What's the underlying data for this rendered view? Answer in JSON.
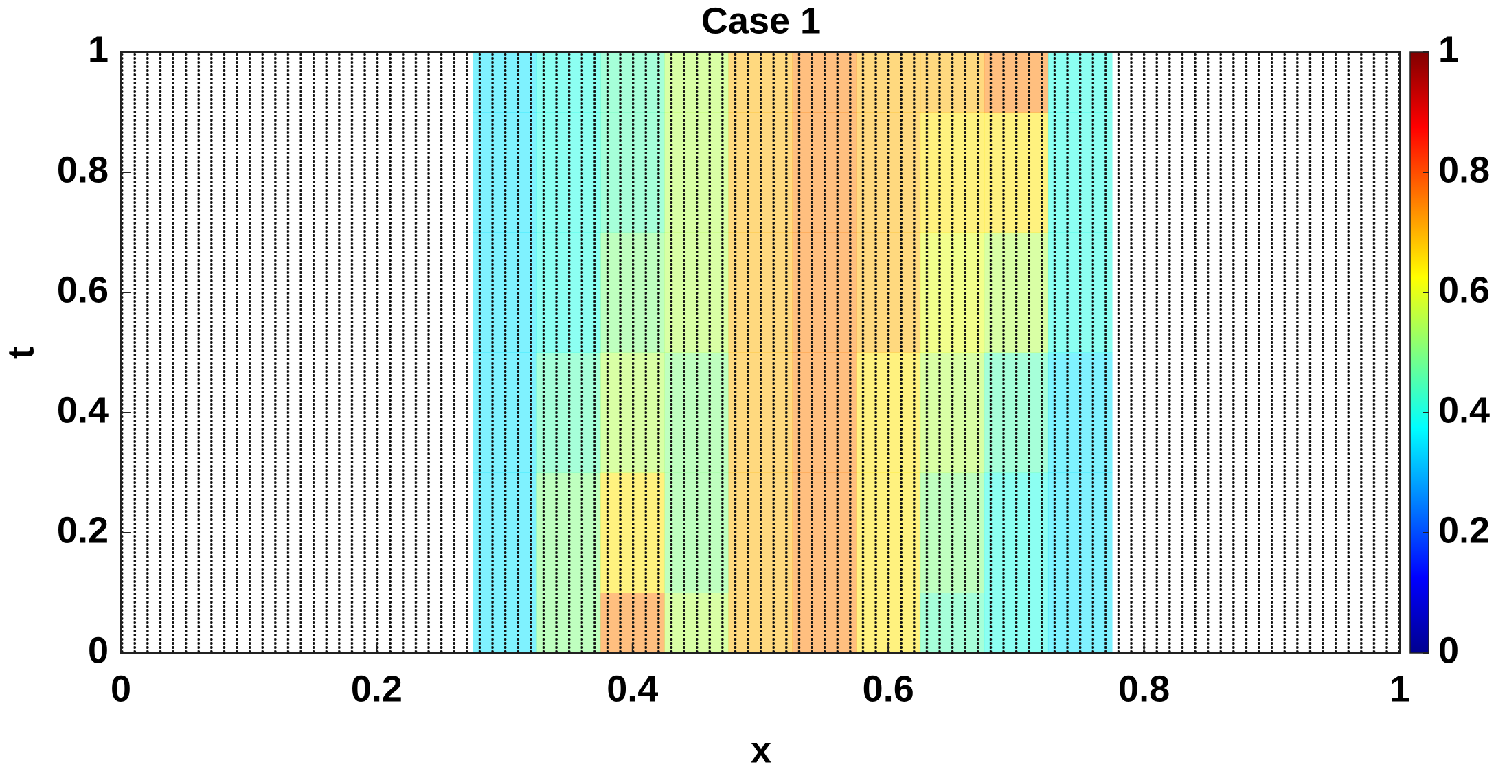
{
  "chart_data": {
    "type": "heatmap",
    "title": "Case 1",
    "xlabel": "x",
    "ylabel": "t",
    "x": [
      0,
      0.05,
      0.1,
      0.15,
      0.2,
      0.25,
      0.3,
      0.35,
      0.4,
      0.45,
      0.5,
      0.55,
      0.6,
      0.65,
      0.7,
      0.75,
      0.8,
      0.85,
      0.9,
      0.95,
      1
    ],
    "y": [
      0,
      0.2,
      0.4,
      0.6,
      0.8,
      1
    ],
    "z": [
      [
        null,
        null,
        null,
        null,
        null,
        null,
        0.35,
        0.5,
        0.75,
        0.55,
        0.7,
        0.75,
        0.65,
        0.45,
        0.4,
        0.35,
        null,
        null,
        null,
        null,
        null
      ],
      [
        null,
        null,
        null,
        null,
        null,
        null,
        0.35,
        0.5,
        0.65,
        0.5,
        0.7,
        0.75,
        0.65,
        0.5,
        0.4,
        0.35,
        null,
        null,
        null,
        null,
        null
      ],
      [
        null,
        null,
        null,
        null,
        null,
        null,
        0.35,
        0.45,
        0.55,
        0.5,
        0.7,
        0.75,
        0.65,
        0.55,
        0.45,
        0.35,
        null,
        null,
        null,
        null,
        null
      ],
      [
        null,
        null,
        null,
        null,
        null,
        null,
        0.35,
        0.4,
        0.5,
        0.55,
        0.7,
        0.75,
        0.7,
        0.6,
        0.55,
        0.4,
        null,
        null,
        null,
        null,
        null
      ],
      [
        null,
        null,
        null,
        null,
        null,
        null,
        0.35,
        0.4,
        0.45,
        0.55,
        0.7,
        0.75,
        0.7,
        0.65,
        0.65,
        0.4,
        null,
        null,
        null,
        null,
        null
      ],
      [
        null,
        null,
        null,
        null,
        null,
        null,
        0.35,
        0.4,
        0.45,
        0.55,
        0.7,
        0.75,
        0.7,
        0.7,
        0.75,
        0.4,
        null,
        null,
        null,
        null,
        null
      ]
    ],
    "xlim": [
      0,
      1
    ],
    "xticks": [
      0,
      0.2,
      0.4,
      0.6,
      0.8,
      1
    ],
    "ylim": [
      0,
      1
    ],
    "yticks": [
      0,
      0.2,
      0.4,
      0.6,
      0.8,
      1
    ],
    "clim": [
      0,
      1
    ],
    "cticks": [
      0,
      0.2,
      0.4,
      0.6,
      0.8,
      1
    ],
    "colormap": "jet"
  }
}
